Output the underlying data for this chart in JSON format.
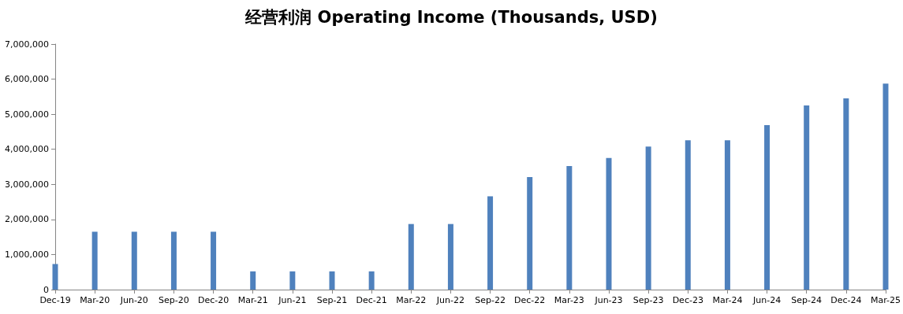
{
  "chart_data": {
    "type": "bar",
    "title": "经营利润 Operating Income (Thousands, USD)",
    "categories": [
      "Dec-19",
      "Mar-20",
      "Jun-20",
      "Sep-20",
      "Dec-20",
      "Mar-21",
      "Jun-21",
      "Sep-21",
      "Dec-21",
      "Mar-22",
      "Jun-22",
      "Sep-22",
      "Dec-22",
      "Mar-23",
      "Jun-23",
      "Sep-23",
      "Dec-23",
      "Mar-24",
      "Jun-24",
      "Sep-24",
      "Dec-24",
      "Mar-25"
    ],
    "values": [
      730000,
      1650000,
      1650000,
      1650000,
      1650000,
      520000,
      520000,
      520000,
      520000,
      1870000,
      1870000,
      2660000,
      3210000,
      3520000,
      3750000,
      4080000,
      4260000,
      4260000,
      4690000,
      5250000,
      5450000,
      5870000
    ],
    "color": "#4f81bd",
    "ylim": [
      0,
      7000000
    ],
    "yticks": [
      0,
      {
        "value": 1000000,
        "label": "1,000,000"
      },
      {
        "value": 2000000,
        "label": "2,000,000"
      },
      {
        "value": 3000000,
        "label": "3,000,000"
      },
      {
        "value": 4000000,
        "label": "4,000,000"
      },
      {
        "value": 5000000,
        "label": "5,000,000"
      },
      {
        "value": 6000000,
        "label": "6,000,000"
      },
      {
        "value": 7000000,
        "label": "7,000,000"
      }
    ],
    "grid": false
  }
}
